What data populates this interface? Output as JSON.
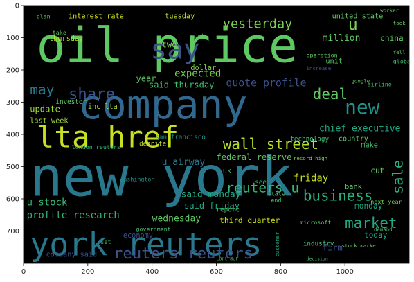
{
  "chart_data": {
    "type": "image",
    "xlim": [
      0,
      1200
    ],
    "ylim": [
      800,
      0
    ],
    "x_ticks": [
      0,
      200,
      400,
      600,
      800,
      1000
    ],
    "y_ticks": [
      0,
      100,
      200,
      300,
      400,
      500,
      600,
      700
    ],
    "x_tick_labels": [
      "0",
      "200",
      "400",
      "600",
      "800",
      "1000"
    ],
    "y_tick_labels": [
      "0",
      "100",
      "200",
      "300",
      "400",
      "500",
      "600",
      "700"
    ],
    "background_color": "#000000",
    "words": [
      {
        "text": "oil price",
        "x": 40,
        "y": 175,
        "size": 150,
        "color": "#5ec962"
      },
      {
        "text": "new york",
        "x": 20,
        "y": 590,
        "size": 170,
        "color": "#2a788e"
      },
      {
        "text": "company",
        "x": 170,
        "y": 350,
        "size": 125,
        "color": "#31688e"
      },
      {
        "text": "york reuters",
        "x": 20,
        "y": 775,
        "size": 100,
        "color": "#2a788e"
      },
      {
        "text": "lta href",
        "x": 40,
        "y": 440,
        "size": 92,
        "color": "#c8e020"
      },
      {
        "text": "say",
        "x": 395,
        "y": 165,
        "size": 85,
        "color": "#3b528b"
      },
      {
        "text": "yesterday",
        "x": 620,
        "y": 70,
        "size": 40,
        "color": "#7ad151"
      },
      {
        "text": "u",
        "x": 1010,
        "y": 75,
        "size": 50,
        "color": "#7ad151"
      },
      {
        "text": "new",
        "x": 1000,
        "y": 335,
        "size": 60,
        "color": "#21918c"
      },
      {
        "text": "may",
        "x": 20,
        "y": 275,
        "size": 42,
        "color": "#2a788e"
      },
      {
        "text": "share",
        "x": 140,
        "y": 290,
        "size": 48,
        "color": "#3b528b"
      },
      {
        "text": "deal",
        "x": 900,
        "y": 290,
        "size": 45,
        "color": "#5ec962"
      },
      {
        "text": "quote profile",
        "x": 630,
        "y": 250,
        "size": 32,
        "color": "#3b528b"
      },
      {
        "text": "wall street",
        "x": 620,
        "y": 445,
        "size": 45,
        "color": "#b5de2b"
      },
      {
        "text": "business",
        "x": 870,
        "y": 605,
        "size": 45,
        "color": "#2ab07f"
      },
      {
        "text": "market",
        "x": 1000,
        "y": 690,
        "size": 45,
        "color": "#22a884"
      },
      {
        "text": "reuters u",
        "x": 630,
        "y": 580,
        "size": 42,
        "color": "#35b779"
      },
      {
        "text": "reuters reuters",
        "x": 280,
        "y": 785,
        "size": 48,
        "color": "#3b528b"
      },
      {
        "text": "sale",
        "x": 1180,
        "y": 585,
        "size": 44,
        "color": "#2ab07f",
        "rotate": -90
      },
      {
        "text": "interest rate",
        "x": 140,
        "y": 40,
        "size": 22,
        "color": "#d0e11c"
      },
      {
        "text": "tuesday",
        "x": 440,
        "y": 40,
        "size": 22,
        "color": "#bddf26"
      },
      {
        "text": "united state",
        "x": 960,
        "y": 40,
        "size": 22,
        "color": "#5ec962"
      },
      {
        "text": "million",
        "x": 930,
        "y": 110,
        "size": 28,
        "color": "#5ec962"
      },
      {
        "text": "china",
        "x": 1110,
        "y": 110,
        "size": 24,
        "color": "#5ec962"
      },
      {
        "text": "thursday",
        "x": 80,
        "y": 110,
        "size": 22,
        "color": "#bddf26"
      },
      {
        "text": "expected",
        "x": 470,
        "y": 220,
        "size": 30,
        "color": "#7ad151"
      },
      {
        "text": "said thursday",
        "x": 390,
        "y": 255,
        "size": 26,
        "color": "#44bf70"
      },
      {
        "text": "update",
        "x": 20,
        "y": 330,
        "size": 26,
        "color": "#a0da39"
      },
      {
        "text": "inc lta",
        "x": 200,
        "y": 320,
        "size": 22,
        "color": "#a0da39"
      },
      {
        "text": "last week",
        "x": 20,
        "y": 365,
        "size": 22,
        "color": "#a0da39"
      },
      {
        "text": "chief executive",
        "x": 920,
        "y": 390,
        "size": 28,
        "color": "#22a884"
      },
      {
        "text": "federal reserve",
        "x": 600,
        "y": 480,
        "size": 26,
        "color": "#5ec962"
      },
      {
        "text": "u airway",
        "x": 430,
        "y": 495,
        "size": 28,
        "color": "#2a788e"
      },
      {
        "text": "said monday",
        "x": 490,
        "y": 595,
        "size": 28,
        "color": "#22a884"
      },
      {
        "text": "said friday",
        "x": 500,
        "y": 630,
        "size": 26,
        "color": "#22a884"
      },
      {
        "text": "u stock",
        "x": 10,
        "y": 620,
        "size": 30,
        "color": "#35b779"
      },
      {
        "text": "profile research",
        "x": 10,
        "y": 660,
        "size": 30,
        "color": "#35b779"
      },
      {
        "text": "wednesday",
        "x": 400,
        "y": 670,
        "size": 28,
        "color": "#5ec962"
      },
      {
        "text": "third quarter",
        "x": 610,
        "y": 675,
        "size": 24,
        "color": "#d0e11c"
      },
      {
        "text": "friday",
        "x": 840,
        "y": 545,
        "size": 30,
        "color": "#c8e020"
      },
      {
        "text": "monday",
        "x": 1030,
        "y": 630,
        "size": 24,
        "color": "#22a884"
      },
      {
        "text": "today",
        "x": 1060,
        "y": 720,
        "size": 24,
        "color": "#22a884"
      },
      {
        "text": "firm",
        "x": 930,
        "y": 760,
        "size": 26,
        "color": "#3b528b"
      },
      {
        "text": "industry",
        "x": 870,
        "y": 745,
        "size": 20,
        "color": "#44bf70"
      },
      {
        "text": "economy",
        "x": 310,
        "y": 720,
        "size": 22,
        "color": "#3b528b"
      },
      {
        "text": "company said",
        "x": 70,
        "y": 780,
        "size": 22,
        "color": "#3b528b"
      },
      {
        "text": "microsoft",
        "x": 860,
        "y": 680,
        "size": 18,
        "color": "#5ec962"
      },
      {
        "text": "report",
        "x": 600,
        "y": 640,
        "size": 20,
        "color": "#44bf70"
      },
      {
        "text": "washington",
        "x": 300,
        "y": 545,
        "size": 18,
        "color": "#21918c"
      },
      {
        "text": "despite",
        "x": 360,
        "y": 435,
        "size": 20,
        "color": "#b5de2b"
      },
      {
        "text": "san francisco",
        "x": 410,
        "y": 415,
        "size": 20,
        "color": "#21918c"
      },
      {
        "text": "london reuters",
        "x": 150,
        "y": 445,
        "size": 18,
        "color": "#35b779"
      },
      {
        "text": "year",
        "x": 350,
        "y": 235,
        "size": 26,
        "color": "#5ec962"
      },
      {
        "text": "two",
        "x": 430,
        "y": 130,
        "size": 26,
        "color": "#7ad151"
      },
      {
        "text": "dollar",
        "x": 520,
        "y": 200,
        "size": 22,
        "color": "#7ad151"
      },
      {
        "text": "investor",
        "x": 100,
        "y": 305,
        "size": 20,
        "color": "#5ec962"
      },
      {
        "text": "technology",
        "x": 830,
        "y": 420,
        "size": 20,
        "color": "#44bf70"
      },
      {
        "text": "country",
        "x": 980,
        "y": 420,
        "size": 22,
        "color": "#5ec962"
      },
      {
        "text": "make",
        "x": 1050,
        "y": 440,
        "size": 22,
        "color": "#44bf70"
      },
      {
        "text": "cut",
        "x": 1080,
        "y": 520,
        "size": 24,
        "color": "#5ec962"
      },
      {
        "text": "bank",
        "x": 1000,
        "y": 570,
        "size": 22,
        "color": "#5ec962"
      },
      {
        "text": "uk",
        "x": 620,
        "y": 520,
        "size": 22,
        "color": "#44bf70"
      },
      {
        "text": "see",
        "x": 720,
        "y": 555,
        "size": 20,
        "color": "#44bf70"
      },
      {
        "text": "next year",
        "x": 1080,
        "y": 615,
        "size": 18,
        "color": "#7ad151"
      },
      {
        "text": "stock market",
        "x": 990,
        "y": 750,
        "size": 16,
        "color": "#5ec962"
      },
      {
        "text": "government",
        "x": 350,
        "y": 700,
        "size": 18,
        "color": "#44bf70"
      },
      {
        "text": "customer",
        "x": 795,
        "y": 780,
        "size": 16,
        "color": "#22a884",
        "rotate": -90
      },
      {
        "text": "record high",
        "x": 840,
        "y": 480,
        "size": 16,
        "color": "#7ad151"
      },
      {
        "text": "increase",
        "x": 880,
        "y": 200,
        "size": 16,
        "color": "#3b528b"
      },
      {
        "text": "operation",
        "x": 880,
        "y": 160,
        "size": 18,
        "color": "#5ec962"
      },
      {
        "text": "unit",
        "x": 940,
        "y": 180,
        "size": 22,
        "color": "#5ec962"
      },
      {
        "text": "global",
        "x": 1150,
        "y": 180,
        "size": 18,
        "color": "#44bf70"
      },
      {
        "text": "google",
        "x": 1020,
        "y": 240,
        "size": 16,
        "color": "#5ec962"
      },
      {
        "text": "airline",
        "x": 1070,
        "y": 250,
        "size": 18,
        "color": "#44bf70"
      },
      {
        "text": "fell",
        "x": 1150,
        "y": 150,
        "size": 16,
        "color": "#5ec962"
      },
      {
        "text": "took",
        "x": 1150,
        "y": 60,
        "size": 16,
        "color": "#5ec962"
      },
      {
        "text": "worker",
        "x": 1110,
        "y": 20,
        "size": 16,
        "color": "#5ec962"
      },
      {
        "text": "take",
        "x": 90,
        "y": 90,
        "size": 18,
        "color": "#5ec962"
      },
      {
        "text": "plan",
        "x": 40,
        "y": 40,
        "size": 18,
        "color": "#5ec962"
      },
      {
        "text": "cost",
        "x": 520,
        "y": 100,
        "size": 18,
        "color": "#5ec962"
      },
      {
        "text": "set",
        "x": 240,
        "y": 740,
        "size": 18,
        "color": "#44bf70"
      },
      {
        "text": "end",
        "x": 770,
        "y": 610,
        "size": 18,
        "color": "#44bf70"
      },
      {
        "text": "state",
        "x": 760,
        "y": 590,
        "size": 18,
        "color": "#5ec962"
      },
      {
        "text": "demand",
        "x": 1090,
        "y": 700,
        "size": 16,
        "color": "#44bf70"
      },
      {
        "text": "decision",
        "x": 880,
        "y": 790,
        "size": 14,
        "color": "#44bf70"
      },
      {
        "text": "contract",
        "x": 600,
        "y": 790,
        "size": 14,
        "color": "#5ec962"
      }
    ]
  }
}
